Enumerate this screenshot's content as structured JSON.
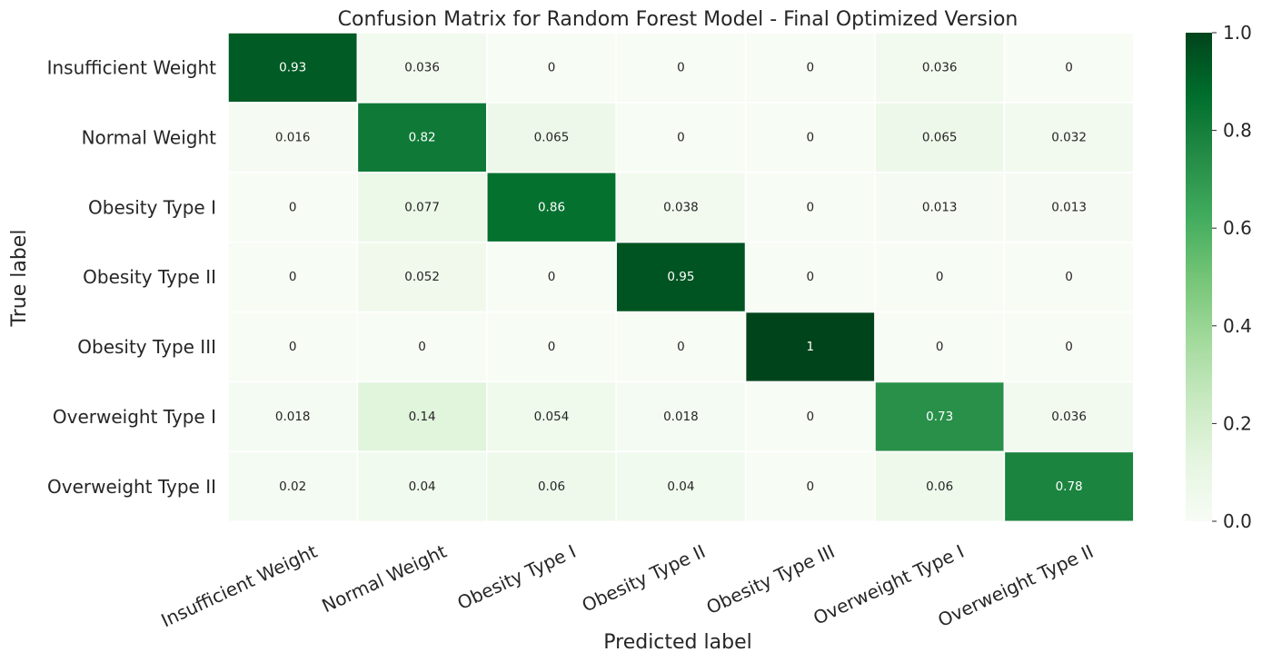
{
  "chart_data": {
    "type": "heatmap",
    "title": "Confusion Matrix for Random Forest Model - Final Optimized Version",
    "xlabel": "Predicted label",
    "ylabel": "True label",
    "categories_x": [
      "Insufficient Weight",
      "Normal Weight",
      "Obesity Type I",
      "Obesity Type II",
      "Obesity Type III",
      "Overweight Type I",
      "Overweight Type II"
    ],
    "categories_y": [
      "Insufficient Weight",
      "Normal Weight",
      "Obesity Type I",
      "Obesity Type II",
      "Obesity Type III",
      "Overweight Type I",
      "Overweight Type II"
    ],
    "values": [
      [
        0.93,
        0.036,
        0,
        0,
        0,
        0.036,
        0
      ],
      [
        0.016,
        0.82,
        0.065,
        0,
        0,
        0.065,
        0.032
      ],
      [
        0,
        0.077,
        0.86,
        0.038,
        0,
        0.013,
        0.013
      ],
      [
        0,
        0.052,
        0,
        0.95,
        0,
        0,
        0
      ],
      [
        0,
        0,
        0,
        0,
        1,
        0,
        0
      ],
      [
        0.018,
        0.14,
        0.054,
        0.018,
        0,
        0.73,
        0.036
      ],
      [
        0.02,
        0.04,
        0.06,
        0.04,
        0,
        0.06,
        0.78
      ]
    ],
    "labels": [
      [
        "0.93",
        "0.036",
        "0",
        "0",
        "0",
        "0.036",
        "0"
      ],
      [
        "0.016",
        "0.82",
        "0.065",
        "0",
        "0",
        "0.065",
        "0.032"
      ],
      [
        "0",
        "0.077",
        "0.86",
        "0.038",
        "0",
        "0.013",
        "0.013"
      ],
      [
        "0",
        "0.052",
        "0",
        "0.95",
        "0",
        "0",
        "0"
      ],
      [
        "0",
        "0",
        "0",
        "0",
        "1",
        "0",
        "0"
      ],
      [
        "0.018",
        "0.14",
        "0.054",
        "0.018",
        "0",
        "0.73",
        "0.036"
      ],
      [
        "0.02",
        "0.04",
        "0.06",
        "0.04",
        "0",
        "0.06",
        "0.78"
      ]
    ],
    "colormap": "Greens",
    "color_range": [
      0.0,
      1.0
    ],
    "colorbar_ticks": [
      "0.0",
      "0.2",
      "0.4",
      "0.6",
      "0.8",
      "1.0"
    ],
    "colorbar_tick_values": [
      0.0,
      0.2,
      0.4,
      0.6,
      0.8,
      1.0
    ],
    "colormap_stops": [
      "#f7fcf5",
      "#e5f5e0",
      "#c7e9c0",
      "#a1d99b",
      "#74c476",
      "#41ab5d",
      "#238b45",
      "#006d2c",
      "#00441b"
    ],
    "cell_border_color": "#ffffff",
    "text_color_light": "#ffffff",
    "text_color_dark": "#262626"
  }
}
